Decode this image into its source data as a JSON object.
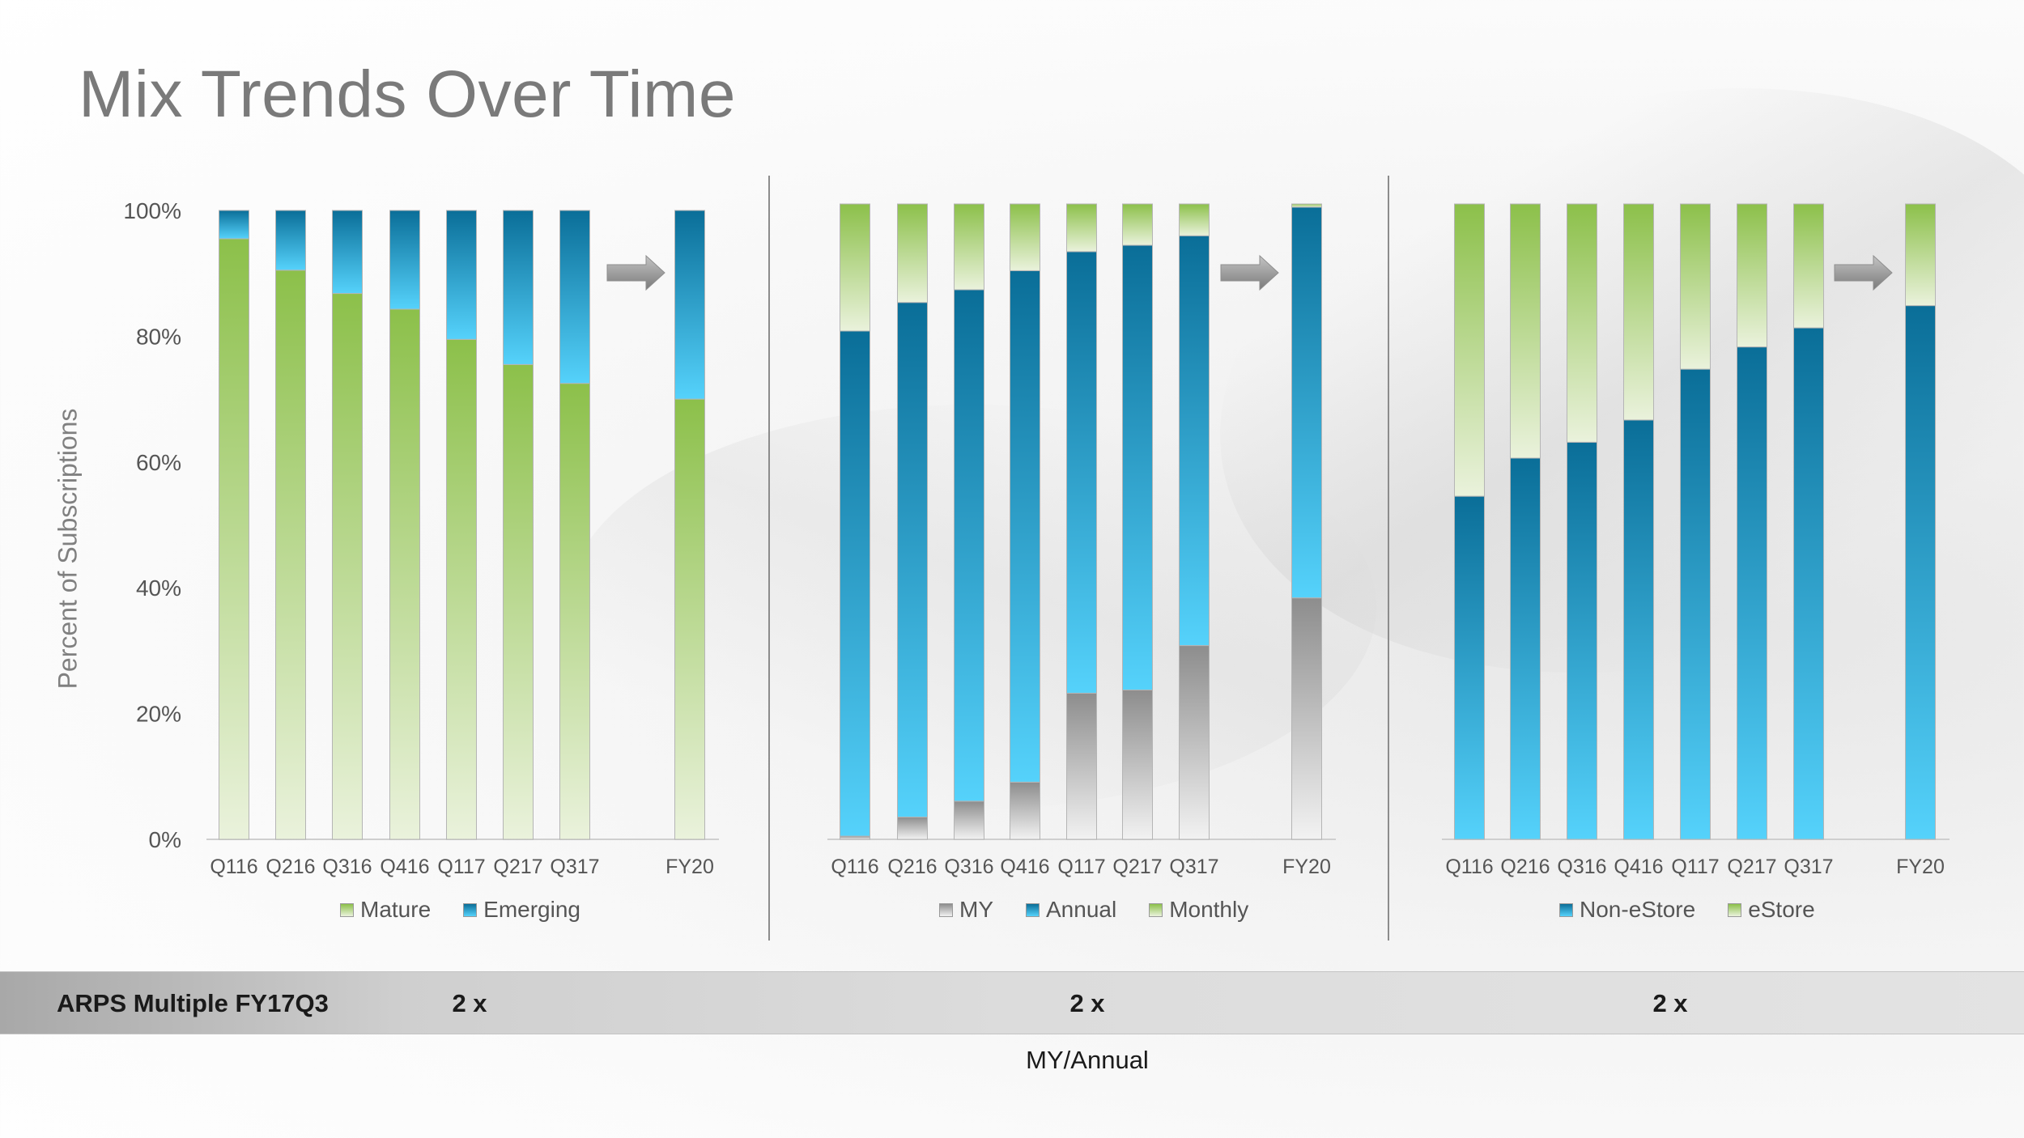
{
  "slide": {
    "title": "Mix Trends Over Time",
    "y_axis_title": "Percent of Subscriptions"
  },
  "colors": {
    "green_top": "#8cc04a",
    "green_bottom": "#eaf2dc",
    "blue_top": "#0a6e98",
    "blue_bottom": "#55d2fb",
    "gray_top": "#8d8d8d",
    "gray_bottom": "#f2f2f2",
    "arrow": "#8e8e8e"
  },
  "chart_data": [
    {
      "type": "bar",
      "stacked": true,
      "categories": [
        "Q116",
        "Q216",
        "Q316",
        "Q416",
        "Q117",
        "Q217",
        "Q317",
        "FY20"
      ],
      "series": [
        {
          "name": "Mature",
          "values": [
            95.5,
            90.5,
            86.8,
            84.3,
            79.5,
            75.5,
            72.5,
            70
          ],
          "color": "green"
        },
        {
          "name": "Emerging",
          "values": [
            4.5,
            9.5,
            13.2,
            15.7,
            20.5,
            24.5,
            27.5,
            30
          ],
          "color": "blue"
        }
      ],
      "ylim": [
        0,
        100
      ],
      "yticks": [
        "0%",
        "20%",
        "40%",
        "60%",
        "80%",
        "100%"
      ],
      "ylabel": "Percent of Subscriptions",
      "legend": [
        "Mature",
        "Emerging"
      ]
    },
    {
      "type": "bar",
      "stacked": true,
      "categories": [
        "Q116",
        "Q216",
        "Q316",
        "Q416",
        "Q117",
        "Q217",
        "Q317",
        "FY20"
      ],
      "series": [
        {
          "name": "MY",
          "values": [
            0.5,
            3.5,
            6,
            9,
            23,
            23.5,
            30.5,
            38
          ],
          "color": "gray"
        },
        {
          "name": "Annual",
          "values": [
            79.5,
            81,
            80.5,
            80.5,
            69.5,
            70,
            64.5,
            61.5
          ],
          "color": "blue"
        },
        {
          "name": "Monthly",
          "values": [
            20,
            15.5,
            13.5,
            10.5,
            7.5,
            6.5,
            5,
            0.5
          ],
          "color": "green"
        }
      ],
      "ylim": [
        0,
        100
      ],
      "legend": [
        "MY",
        "Annual",
        "Monthly"
      ]
    },
    {
      "type": "bar",
      "stacked": true,
      "categories": [
        "Q116",
        "Q216",
        "Q316",
        "Q416",
        "Q117",
        "Q217",
        "Q317",
        "FY20"
      ],
      "series": [
        {
          "name": "Non-eStore",
          "values": [
            54,
            60,
            62.5,
            66,
            74,
            77.5,
            80.5,
            84
          ],
          "color": "blue"
        },
        {
          "name": "eStore",
          "values": [
            46,
            40,
            37.5,
            34,
            26,
            22.5,
            19.5,
            16
          ],
          "color": "green"
        }
      ],
      "ylim": [
        0,
        100
      ],
      "legend": [
        "Non-eStore",
        "eStore"
      ]
    }
  ],
  "footer": {
    "label": "ARPS Multiple FY17Q3",
    "values": [
      "2 x",
      "2 x",
      "2 x"
    ],
    "note": "MY/Annual"
  }
}
